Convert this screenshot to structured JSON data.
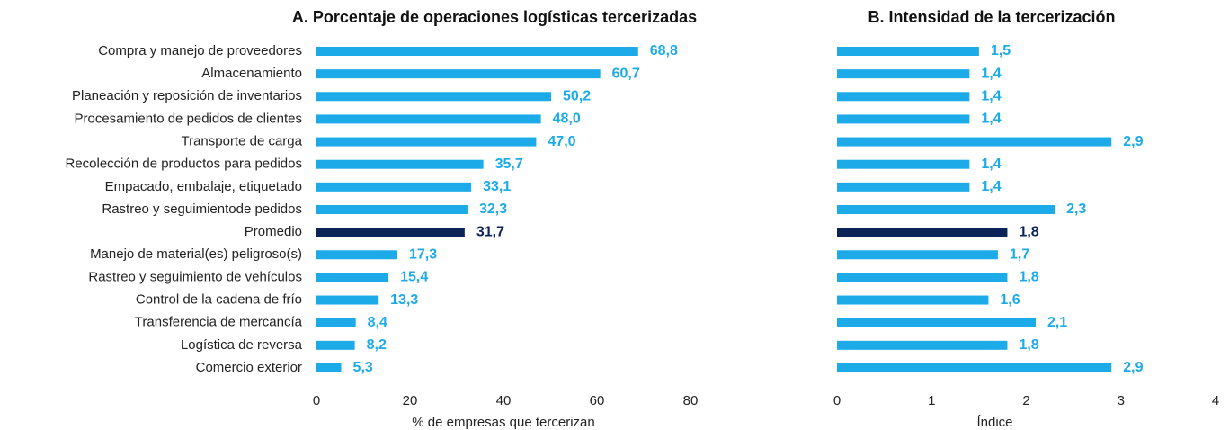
{
  "chart_data": [
    {
      "type": "bar",
      "orientation": "horizontal",
      "title": "A. Porcentaje de operaciones logísticas tercerizadas",
      "x_label": "% de empresas que tercerizan",
      "categories": [
        "Compra y manejo de proveedores",
        "Almacenamiento",
        "Planeación y reposición de inventarios",
        "Procesamiento de pedidos de clientes",
        "Transporte de carga",
        "Recolección de productos para pedidos",
        "Empacado, embalaje, etiquetado",
        "Rastreo y seguimientode pedidos",
        "Promedio",
        "Manejo de material(es) peligroso(s)",
        "Rastreo y seguimiento de vehículos",
        "Control de la cadena de frío",
        "Transferencia de mercancía",
        "Logística de reversa",
        "Comercio exterior"
      ],
      "values": [
        68.8,
        60.7,
        50.2,
        48.0,
        47.0,
        35.7,
        33.1,
        32.3,
        31.7,
        17.3,
        15.4,
        13.3,
        8.4,
        8.2,
        5.3
      ],
      "value_labels": [
        "68,8",
        "60,7",
        "50,2",
        "48,0",
        "47,0",
        "35,7",
        "33,1",
        "32,3",
        "31,7",
        "17,3",
        "15,4",
        "13,3",
        "8,4",
        "8,2",
        "5,3"
      ],
      "colors": [
        "#1cabe8",
        "#1cabe8",
        "#1cabe8",
        "#1cabe8",
        "#1cabe8",
        "#1cabe8",
        "#1cabe8",
        "#1cabe8",
        "#0b2356",
        "#1cabe8",
        "#1cabe8",
        "#1cabe8",
        "#1cabe8",
        "#1cabe8",
        "#1cabe8"
      ],
      "xlim": [
        0,
        80
      ],
      "xticks": [
        0,
        20,
        40,
        60,
        80
      ]
    },
    {
      "type": "bar",
      "orientation": "horizontal",
      "title": "B. Intensidad de la tercerización",
      "x_label": "Índice",
      "values": [
        1.5,
        1.4,
        1.4,
        1.4,
        2.9,
        1.4,
        1.4,
        2.3,
        1.8,
        1.7,
        1.8,
        1.6,
        2.1,
        1.8,
        2.9
      ],
      "value_labels": [
        "1,5",
        "1,4",
        "1,4",
        "1,4",
        "2,9",
        "1,4",
        "1,4",
        "2,3",
        "1,8",
        "1,7",
        "1,8",
        "1,6",
        "2,1",
        "1,8",
        "2,9"
      ],
      "colors": [
        "#1cabe8",
        "#1cabe8",
        "#1cabe8",
        "#1cabe8",
        "#1cabe8",
        "#1cabe8",
        "#1cabe8",
        "#1cabe8",
        "#0b2356",
        "#1cabe8",
        "#1cabe8",
        "#1cabe8",
        "#1cabe8",
        "#1cabe8",
        "#1cabe8"
      ],
      "xlim": [
        0,
        4
      ],
      "xticks": [
        0,
        1,
        2,
        3,
        4
      ]
    }
  ]
}
